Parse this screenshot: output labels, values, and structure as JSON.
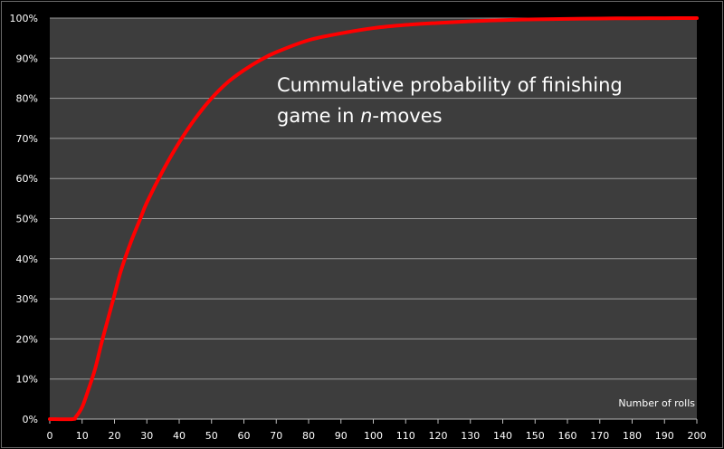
{
  "chart_data": {
    "type": "line",
    "title_line1": "Cummulative probability of finishing",
    "title_line2_prefix": "game in ",
    "title_line2_italic": "n",
    "title_line2_suffix": "-moves",
    "xlabel": "Number of rolls",
    "ylabel": "",
    "xlim": [
      0,
      200
    ],
    "ylim": [
      0,
      1
    ],
    "grid": true,
    "x_ticks": [
      0,
      10,
      20,
      30,
      40,
      50,
      60,
      70,
      80,
      90,
      100,
      110,
      120,
      130,
      140,
      150,
      160,
      170,
      180,
      190,
      200
    ],
    "y_tick_labels": [
      "0%",
      "10%",
      "20%",
      "30%",
      "40%",
      "50%",
      "60%",
      "70%",
      "80%",
      "90%",
      "100%"
    ],
    "series": [
      {
        "color": "#ff0000",
        "x": [
          0,
          7,
          8,
          10,
          12,
          14,
          16,
          18,
          20,
          22,
          25,
          28,
          30,
          35,
          40,
          45,
          50,
          55,
          60,
          65,
          70,
          80,
          90,
          100,
          110,
          120,
          130,
          140,
          150,
          160,
          170,
          180,
          190,
          200
        ],
        "y": [
          0,
          0,
          0.005,
          0.03,
          0.075,
          0.125,
          0.19,
          0.25,
          0.31,
          0.37,
          0.44,
          0.5,
          0.54,
          0.62,
          0.69,
          0.75,
          0.8,
          0.84,
          0.87,
          0.895,
          0.915,
          0.945,
          0.962,
          0.975,
          0.983,
          0.988,
          0.992,
          0.995,
          0.997,
          0.998,
          0.999,
          0.9995,
          0.9998,
          1.0
        ]
      }
    ]
  },
  "colors": {
    "background": "#000000",
    "plot_area": "#3d3d3d",
    "gridline": "#9a9a9a",
    "line": "#ff0000",
    "text": "#ffffff"
  }
}
